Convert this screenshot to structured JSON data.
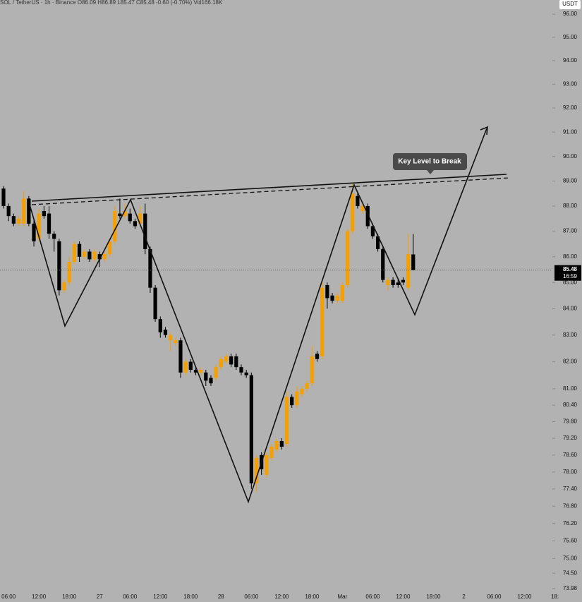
{
  "chart_data": {
    "type": "candlestick",
    "header": "SOL / TetherUS · 1h · Binance",
    "ohlc": "O86.09 H86.89 L85.47 C85.48 -0.60 (-0.70%)",
    "volume": "Vol166.18K",
    "currency": "USDT",
    "annotation": "Key Level to Break",
    "last_price": 85.48,
    "countdown": "16:59",
    "up_color": "#f5a000",
    "down_color": "#000000",
    "log_scale": true,
    "ylim": [
      73.84,
      96.62
    ],
    "yticks": [
      {
        "value": 96,
        "label": "96.00"
      },
      {
        "value": 95,
        "label": "95.00"
      },
      {
        "value": 94,
        "label": "94.00"
      },
      {
        "value": 93,
        "label": "93.00"
      },
      {
        "value": 92,
        "label": "92.00"
      },
      {
        "value": 91,
        "label": "91.00"
      },
      {
        "value": 90,
        "label": "90.00"
      },
      {
        "value": 89,
        "label": "89.00"
      },
      {
        "value": 88,
        "label": "88.00"
      },
      {
        "value": 87,
        "label": "87.00"
      },
      {
        "value": 86,
        "label": "86.00"
      },
      {
        "value": 85,
        "label": "85.00"
      },
      {
        "value": 84,
        "label": "84.00"
      },
      {
        "value": 83,
        "label": "83.00"
      },
      {
        "value": 82,
        "label": "82.00"
      },
      {
        "value": 81,
        "label": "81.00"
      },
      {
        "value": 80.4,
        "label": "80.40"
      },
      {
        "value": 79.8,
        "label": "79.80"
      },
      {
        "value": 79.2,
        "label": "79.20"
      },
      {
        "value": 78.6,
        "label": "78.60"
      },
      {
        "value": 78,
        "label": "78.00"
      },
      {
        "value": 77.4,
        "label": "77.40"
      },
      {
        "value": 76.8,
        "label": "76.80"
      },
      {
        "value": 76.2,
        "label": "76.20"
      },
      {
        "value": 75.6,
        "label": "75.60"
      },
      {
        "value": 75,
        "label": "75.00"
      },
      {
        "value": 74.5,
        "label": "74.50"
      },
      73.98
    ],
    "categories": [
      null,
      "06:00",
      null,
      null,
      null,
      null,
      null,
      "12:00",
      null,
      null,
      null,
      null,
      null,
      "18:00",
      null,
      null,
      null,
      null,
      null,
      "27",
      null,
      null,
      null,
      null,
      null,
      "06:00",
      null,
      null,
      null,
      null,
      null,
      "12:00",
      null,
      null,
      null,
      null,
      null,
      "18:00",
      null,
      null,
      null,
      null,
      null,
      "28",
      null,
      null,
      null,
      null,
      null,
      "06:00",
      null,
      null,
      null,
      null,
      null,
      "12:00",
      null,
      null,
      null,
      null,
      null,
      "18:00",
      null,
      null,
      null,
      null,
      null,
      "Mar",
      null,
      null,
      null,
      null,
      null,
      "06:00",
      null,
      null,
      null,
      null,
      null,
      "12:00",
      null,
      null,
      null,
      null,
      null,
      "18:00",
      null,
      null,
      null,
      null,
      null,
      "2",
      null,
      null,
      null,
      null,
      null,
      "06:00",
      null,
      null,
      null,
      null,
      null,
      "12:00",
      null,
      null,
      null,
      null,
      null,
      "18:"
    ],
    "open": [
      88.7,
      88.0,
      87.6,
      87.3,
      87.3,
      88.3,
      87.3,
      86.7,
      87.8,
      87.7,
      86.9,
      86.6,
      84.7,
      85.0,
      85.8,
      86.5,
      86.0,
      86.2,
      85.9,
      86.1,
      85.9,
      86.1,
      86.6,
      87.7,
      87.6,
      87.7,
      87.4,
      87.3,
      87.7,
      86.3,
      84.8,
      83.6,
      83.2,
      82.8,
      82.7,
      82.8,
      81.6,
      82.0,
      81.7,
      81.6,
      81.6,
      81.4,
      81.4,
      81.8,
      82.0,
      82.2,
      82.2,
      81.8,
      81.6,
      81.5,
      77.6,
      78.6,
      77.9,
      78.5,
      78.8,
      79.1,
      79.0,
      80.7,
      80.4,
      80.8,
      81.0,
      81.2,
      82.3,
      82.2,
      84.9,
      84.5,
      84.3,
      84.3,
      84.9,
      87.0,
      88.4,
      87.8,
      88.0,
      87.2,
      86.8,
      86.3,
      84.9,
      85.1,
      85.0,
      85.1,
      84.8,
      86.09,
      null,
      null,
      null,
      null,
      null,
      null,
      null,
      null,
      null,
      null,
      null,
      null,
      null,
      null,
      null,
      null,
      null,
      null,
      null,
      null,
      null,
      null,
      null,
      null,
      null,
      null,
      null,
      null
    ],
    "high": [
      88.8,
      88.1,
      87.7,
      87.6,
      88.6,
      88.4,
      87.5,
      87.9,
      88.0,
      88.0,
      87.0,
      86.7,
      85.1,
      86.0,
      86.6,
      86.6,
      86.3,
      86.3,
      86.3,
      86.2,
      86.2,
      86.7,
      88.0,
      88.3,
      88.1,
      87.9,
      87.5,
      88.0,
      88.1,
      86.4,
      84.9,
      83.7,
      83.3,
      83.1,
      82.9,
      82.9,
      82.1,
      82.1,
      81.8,
      81.8,
      81.7,
      81.5,
      81.9,
      82.2,
      82.3,
      82.3,
      82.3,
      81.9,
      81.7,
      81.6,
      78.6,
      78.7,
      78.7,
      79.0,
      79.2,
      79.2,
      80.9,
      80.8,
      81.1,
      81.1,
      81.3,
      82.6,
      82.4,
      85.0,
      85.0,
      84.6,
      84.6,
      85.0,
      87.1,
      88.9,
      88.5,
      88.1,
      88.1,
      87.3,
      86.9,
      86.4,
      85.2,
      85.2,
      85.1,
      85.2,
      86.9,
      86.89,
      null,
      null,
      null,
      null,
      null,
      null,
      null,
      null,
      null,
      null,
      null,
      null,
      null,
      null,
      null,
      null,
      null,
      null,
      null,
      null,
      null,
      null,
      null,
      null,
      null,
      null,
      null,
      null
    ],
    "low": [
      87.9,
      87.4,
      87.2,
      87.2,
      87.2,
      87.2,
      86.4,
      86.6,
      87.5,
      86.7,
      86.2,
      84.5,
      84.6,
      84.9,
      85.7,
      85.8,
      85.9,
      85.8,
      85.8,
      85.6,
      85.8,
      86.0,
      86.5,
      87.5,
      87.5,
      87.3,
      87.1,
      87.2,
      86.1,
      84.6,
      83.5,
      82.9,
      82.9,
      82.4,
      82.6,
      81.4,
      81.5,
      81.6,
      81.5,
      81.5,
      81.1,
      81.1,
      81.3,
      81.7,
      81.9,
      81.8,
      81.7,
      81.5,
      81.4,
      77.4,
      77.3,
      77.9,
      77.8,
      78.4,
      78.7,
      78.8,
      78.9,
      80.3,
      80.3,
      80.7,
      80.9,
      81.1,
      82.0,
      82.1,
      84.0,
      84.2,
      84.2,
      84.2,
      84.8,
      86.9,
      87.9,
      87.7,
      87.1,
      86.7,
      86.2,
      85.0,
      84.7,
      84.8,
      84.8,
      84.9,
      84.7,
      85.47,
      null,
      null,
      null,
      null,
      null,
      null,
      null,
      null,
      null,
      null,
      null,
      null,
      null,
      null,
      null,
      null,
      null,
      null,
      null,
      null,
      null,
      null,
      null,
      null,
      null,
      null,
      null,
      null
    ],
    "close": [
      88.0,
      87.6,
      87.3,
      87.5,
      88.3,
      87.3,
      86.6,
      87.7,
      87.6,
      86.9,
      86.7,
      84.7,
      85.0,
      85.8,
      86.5,
      86.0,
      86.2,
      85.9,
      86.2,
      85.9,
      86.1,
      86.6,
      87.8,
      87.6,
      87.8,
      87.4,
      87.2,
      87.7,
      86.3,
      84.8,
      83.6,
      83.1,
      83.0,
      83.0,
      82.8,
      81.6,
      82.0,
      81.7,
      81.6,
      81.7,
      81.3,
      81.2,
      81.8,
      82.1,
      82.2,
      81.9,
      81.8,
      81.6,
      81.5,
      77.6,
      78.5,
      78.1,
      78.6,
      78.9,
      79.1,
      78.9,
      80.7,
      80.4,
      80.9,
      81.0,
      81.2,
      82.2,
      82.1,
      84.8,
      84.4,
      84.3,
      84.5,
      84.9,
      87.0,
      88.5,
      88.0,
      88.0,
      87.2,
      86.8,
      86.3,
      85.1,
      85.1,
      84.9,
      84.9,
      85.0,
      86.1,
      85.48,
      null,
      null,
      null,
      null,
      null,
      null,
      null,
      null,
      null,
      null,
      null,
      null,
      null,
      null,
      null,
      null,
      null,
      null,
      null,
      null,
      null,
      null,
      null,
      null,
      null,
      null,
      null,
      null
    ]
  }
}
